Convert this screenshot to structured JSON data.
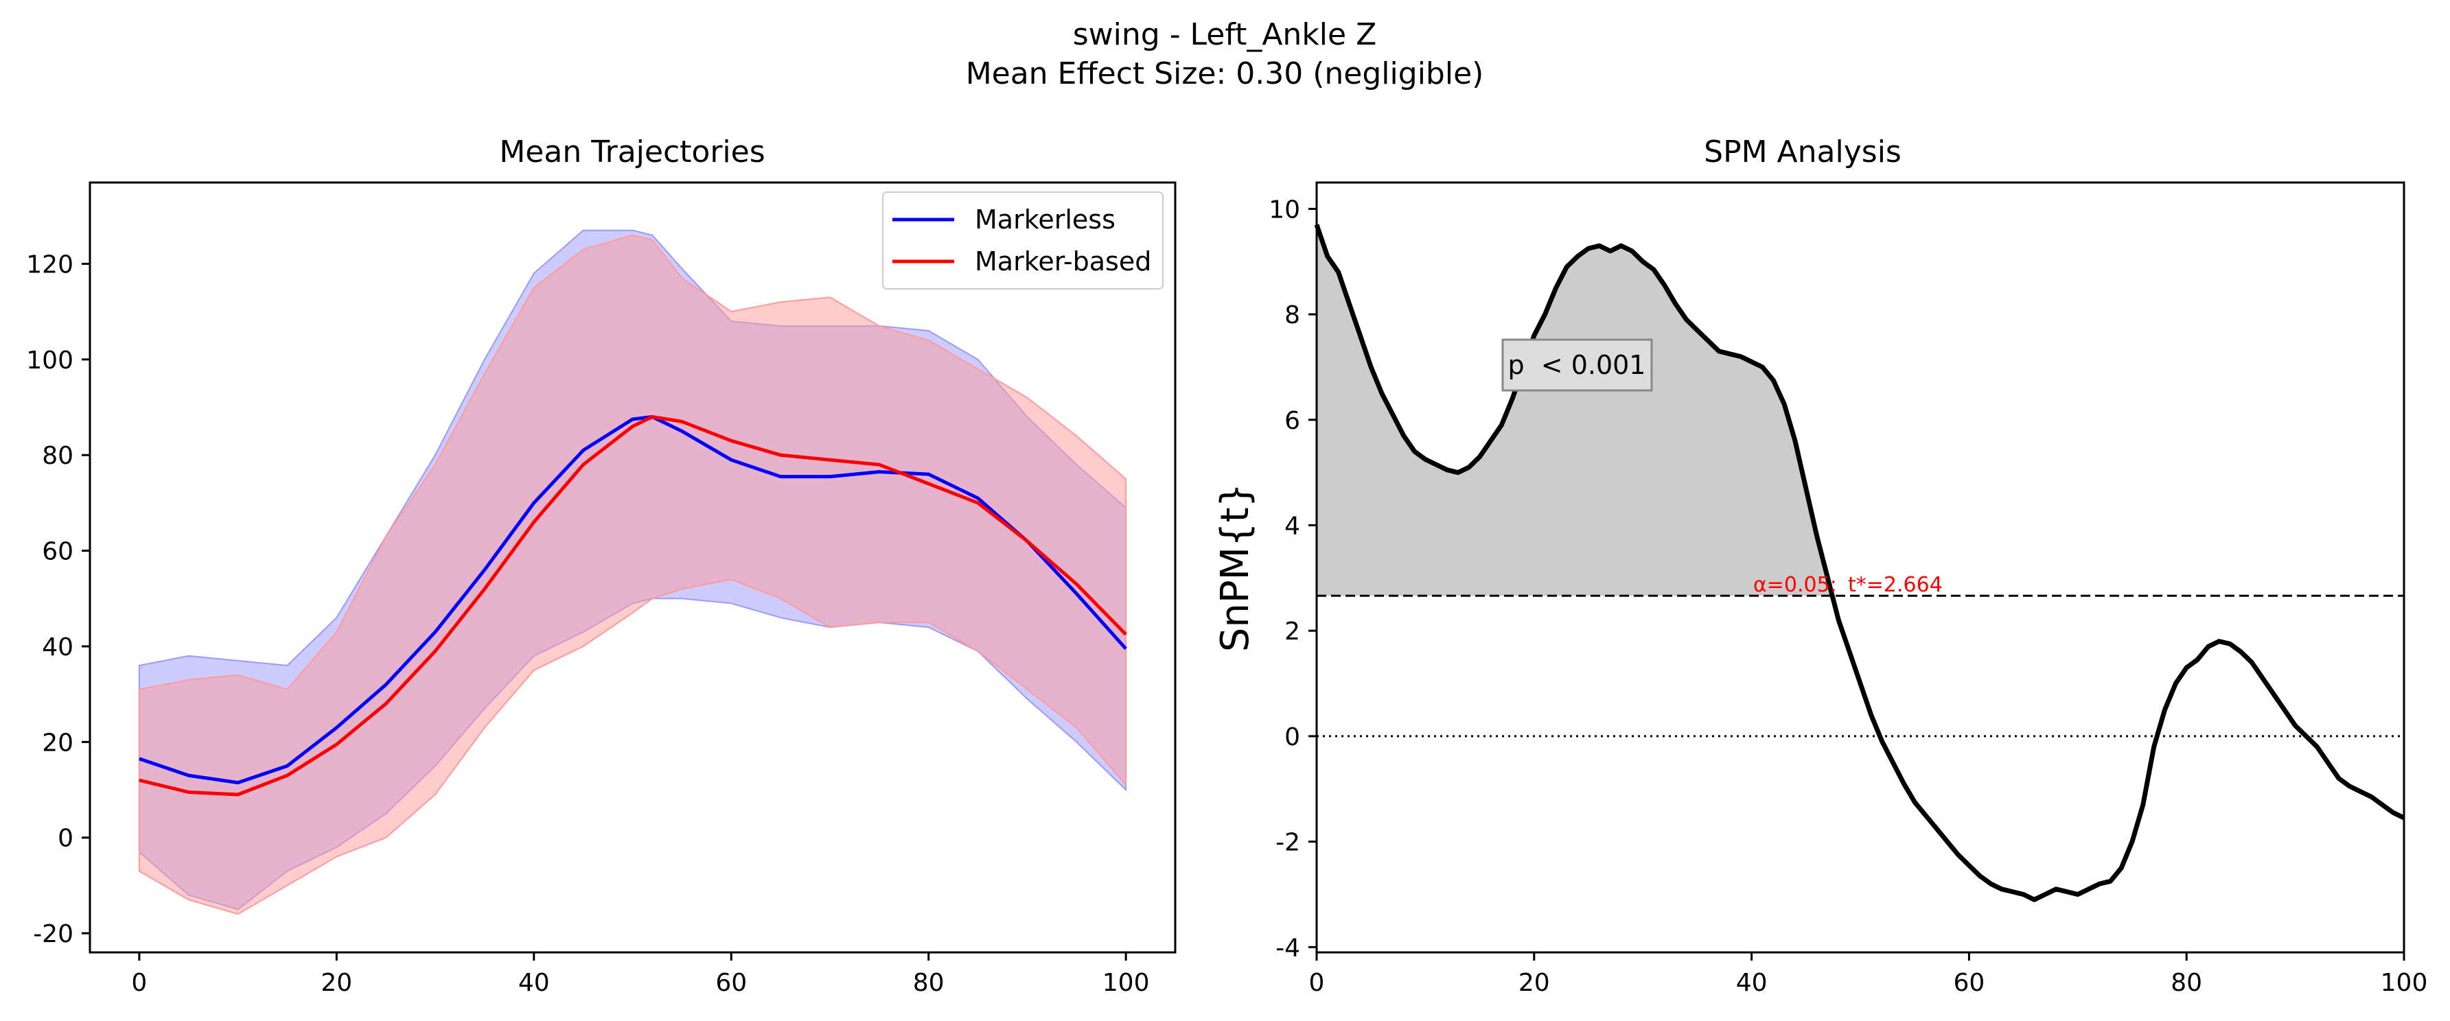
{
  "figure": {
    "title_line1": "swing - Left_Ankle Z",
    "title_line2": "Mean Effect Size: 0.30 (negligible)"
  },
  "colors": {
    "markerless": "#0000ff",
    "marker_based": "#ff0000",
    "markerless_band": "#9a9aff",
    "marker_based_band": "#ff9a9a",
    "cluster_fill": "#cccccc",
    "threshold_label": "#ff0000"
  },
  "chart_data": [
    {
      "type": "line",
      "title": "Mean Trajectories",
      "xlabel": "",
      "ylabel": "",
      "xlim": [
        -5,
        105
      ],
      "ylim": [
        -24,
        137
      ],
      "xticks": [
        0,
        20,
        40,
        60,
        80,
        100
      ],
      "yticks": [
        -20,
        0,
        20,
        40,
        60,
        80,
        100,
        120
      ],
      "legend": {
        "position": "top-right",
        "entries": [
          "Markerless",
          "Marker-based"
        ]
      },
      "x": [
        0,
        5,
        10,
        15,
        20,
        25,
        30,
        35,
        40,
        45,
        50,
        52,
        55,
        60,
        65,
        70,
        75,
        80,
        85,
        90,
        95,
        100
      ],
      "series": [
        {
          "name": "Markerless",
          "color": "#0000ff",
          "mean": [
            16.5,
            13,
            11.5,
            15,
            23,
            32,
            43,
            56,
            70,
            81,
            87.5,
            88,
            85,
            79,
            75.5,
            75.5,
            76.5,
            76,
            71,
            62,
            51,
            39.5
          ],
          "upper": [
            36,
            38,
            37,
            36,
            46,
            63,
            80,
            100,
            118,
            127,
            127,
            126,
            119,
            108,
            107,
            107,
            107,
            106,
            100,
            88,
            78,
            69
          ],
          "lower": [
            -3,
            -12,
            -15,
            -7,
            -2,
            5,
            15,
            27,
            38,
            43,
            49,
            50,
            50,
            49,
            46,
            44,
            45,
            44,
            39,
            29,
            20,
            10
          ]
        },
        {
          "name": "Marker-based",
          "color": "#ff0000",
          "mean": [
            12,
            9.5,
            9,
            13,
            19.5,
            28,
            39,
            52,
            66,
            78,
            86,
            88,
            87,
            83,
            80,
            79,
            78,
            74,
            70,
            62,
            53,
            42.5
          ],
          "upper": [
            31,
            33,
            34,
            31,
            43,
            63,
            78,
            97,
            115,
            123,
            126,
            125,
            117,
            110,
            112,
            113,
            107,
            104,
            98,
            92,
            84,
            75
          ],
          "lower": [
            -7,
            -13,
            -16,
            -10,
            -4,
            0,
            9,
            23,
            35,
            40,
            47,
            50,
            52,
            54,
            50,
            44,
            45,
            45,
            39,
            31,
            23,
            11
          ]
        }
      ]
    },
    {
      "type": "line",
      "title": "SPM Analysis",
      "xlabel": "",
      "ylabel": "SnPM{t}",
      "xlim": [
        0,
        100
      ],
      "ylim": [
        -4.1,
        10.5
      ],
      "xticks": [
        0,
        20,
        40,
        60,
        80,
        100
      ],
      "yticks": [
        -4,
        -2,
        0,
        2,
        4,
        6,
        8,
        10
      ],
      "threshold": 2.664,
      "threshold_label_alpha": "α=0.05:",
      "threshold_label_t": "t*=2.664",
      "zero_line": 0,
      "cluster_label": "p  < 0.001",
      "x": [
        0,
        1,
        2,
        3,
        4,
        5,
        6,
        7,
        8,
        9,
        10,
        11,
        12,
        13,
        14,
        15,
        16,
        17,
        18,
        19,
        20,
        21,
        22,
        23,
        24,
        25,
        26,
        27,
        28,
        29,
        30,
        31,
        32,
        33,
        34,
        35,
        36,
        37,
        38,
        39,
        40,
        41,
        42,
        43,
        44,
        45,
        46,
        47,
        48,
        49,
        50,
        51,
        52,
        53,
        54,
        55,
        56,
        57,
        58,
        59,
        60,
        61,
        62,
        63,
        64,
        65,
        66,
        67,
        68,
        69,
        70,
        71,
        72,
        73,
        74,
        75,
        76,
        77,
        78,
        79,
        80,
        81,
        82,
        83,
        84,
        85,
        86,
        87,
        88,
        89,
        90,
        91,
        92,
        93,
        94,
        95,
        96,
        97,
        98,
        99,
        100
      ],
      "values": [
        9.7,
        9.1,
        8.8,
        8.2,
        7.6,
        7.0,
        6.5,
        6.1,
        5.7,
        5.4,
        5.25,
        5.15,
        5.05,
        5.0,
        5.1,
        5.3,
        5.6,
        5.9,
        6.4,
        7.0,
        7.6,
        8.0,
        8.5,
        8.9,
        9.1,
        9.25,
        9.3,
        9.2,
        9.3,
        9.2,
        9.0,
        8.85,
        8.55,
        8.2,
        7.9,
        7.7,
        7.5,
        7.3,
        7.25,
        7.2,
        7.1,
        7.0,
        6.75,
        6.3,
        5.6,
        4.7,
        3.8,
        3.0,
        2.2,
        1.6,
        1.0,
        0.4,
        -0.1,
        -0.5,
        -0.9,
        -1.25,
        -1.5,
        -1.75,
        -2.0,
        -2.25,
        -2.45,
        -2.65,
        -2.8,
        -2.9,
        -2.95,
        -3.0,
        -3.1,
        -3.0,
        -2.9,
        -2.95,
        -3.0,
        -2.9,
        -2.8,
        -2.75,
        -2.5,
        -2.0,
        -1.3,
        -0.2,
        0.5,
        1.0,
        1.3,
        1.45,
        1.7,
        1.8,
        1.75,
        1.6,
        1.4,
        1.1,
        0.8,
        0.5,
        0.2,
        0.0,
        -0.2,
        -0.5,
        -0.8,
        -0.95,
        -1.05,
        -1.15,
        -1.3,
        -1.45,
        -1.55
      ]
    }
  ]
}
